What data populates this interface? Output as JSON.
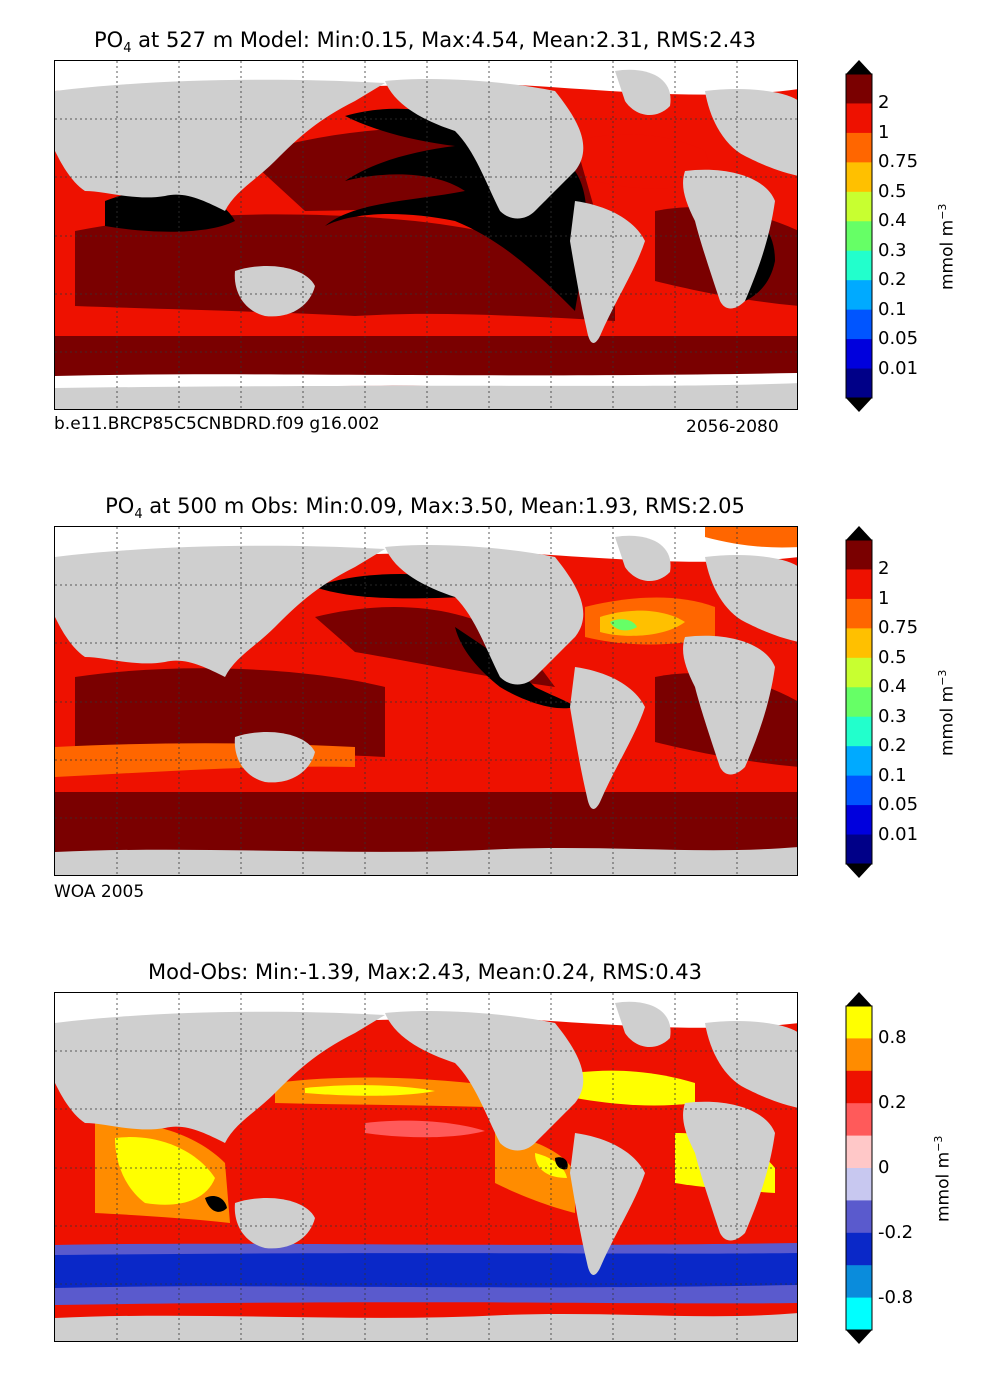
{
  "panels": [
    {
      "title_prefix": "PO",
      "title_sub": "4",
      "title_rest": " at 527 m Model: Min:0.15, Max:4.54, Mean:2.31, RMS:2.43",
      "footer_left": "b.e11.BRCP85C5CNBDRD.f09 g16.002",
      "footer_right": "2056-2080",
      "colorbar": {
        "labels": [
          "2",
          "1",
          "0.75",
          "0.5",
          "0.4",
          "0.3",
          "0.2",
          "0.1",
          "0.05",
          "0.01"
        ],
        "colors": [
          "#7a0000",
          "#ee1100",
          "#ff6600",
          "#ffc000",
          "#c8ff30",
          "#66ff66",
          "#22ffcc",
          "#00aaff",
          "#0055ff",
          "#0000dd",
          "#000088"
        ],
        "unit": "mmol m",
        "unit_sup": "−3"
      }
    },
    {
      "title_prefix": "PO",
      "title_sub": "4",
      "title_rest": " at 500 m Obs: Min:0.09, Max:3.50, Mean:1.93, RMS:2.05",
      "footer_left": "WOA 2005",
      "footer_right": "",
      "colorbar": {
        "labels": [
          "2",
          "1",
          "0.75",
          "0.5",
          "0.4",
          "0.3",
          "0.2",
          "0.1",
          "0.05",
          "0.01"
        ],
        "colors": [
          "#7a0000",
          "#ee1100",
          "#ff6600",
          "#ffc000",
          "#c8ff30",
          "#66ff66",
          "#22ffcc",
          "#00aaff",
          "#0055ff",
          "#0000dd",
          "#000088"
        ],
        "unit": "mmol m",
        "unit_sup": "−3"
      }
    },
    {
      "title_prefix": "",
      "title_sub": "",
      "title_rest": "Mod-Obs: Min:-1.39, Max:2.43, Mean:0.24, RMS:0.43",
      "footer_left": "",
      "footer_right": "",
      "colorbar": {
        "labels": [
          "0.8",
          "0.2",
          "0",
          "-0.2",
          "-0.8"
        ],
        "label_slots": [
          1,
          3,
          5,
          7,
          9
        ],
        "colors": [
          "#ffff00",
          "#ff8c00",
          "#ee1100",
          "#ff5a5a",
          "#ffc8c8",
          "#c8c8f0",
          "#5a5acd",
          "#0a28c8",
          "#0a8cdc",
          "#00ffff"
        ],
        "unit": "mmol m",
        "unit_sup": "−3"
      }
    }
  ],
  "map_colors": {
    "land": "#cfcfcf",
    "missing": "#ffffff",
    "deep_high": "#7a0000",
    "high": "#ee1100",
    "max": "#000000",
    "mid": "#ff6600",
    "lowmid": "#ffc000",
    "diff_yellow": "#ffff00",
    "diff_orange": "#ff8c00",
    "diff_red": "#ee1100",
    "diff_pink": "#ff5a5a",
    "diff_lightpink": "#ffc8c8",
    "diff_lavender": "#c8c8f0",
    "diff_blue": "#0a28c8",
    "diff_slate": "#5a5acd"
  }
}
